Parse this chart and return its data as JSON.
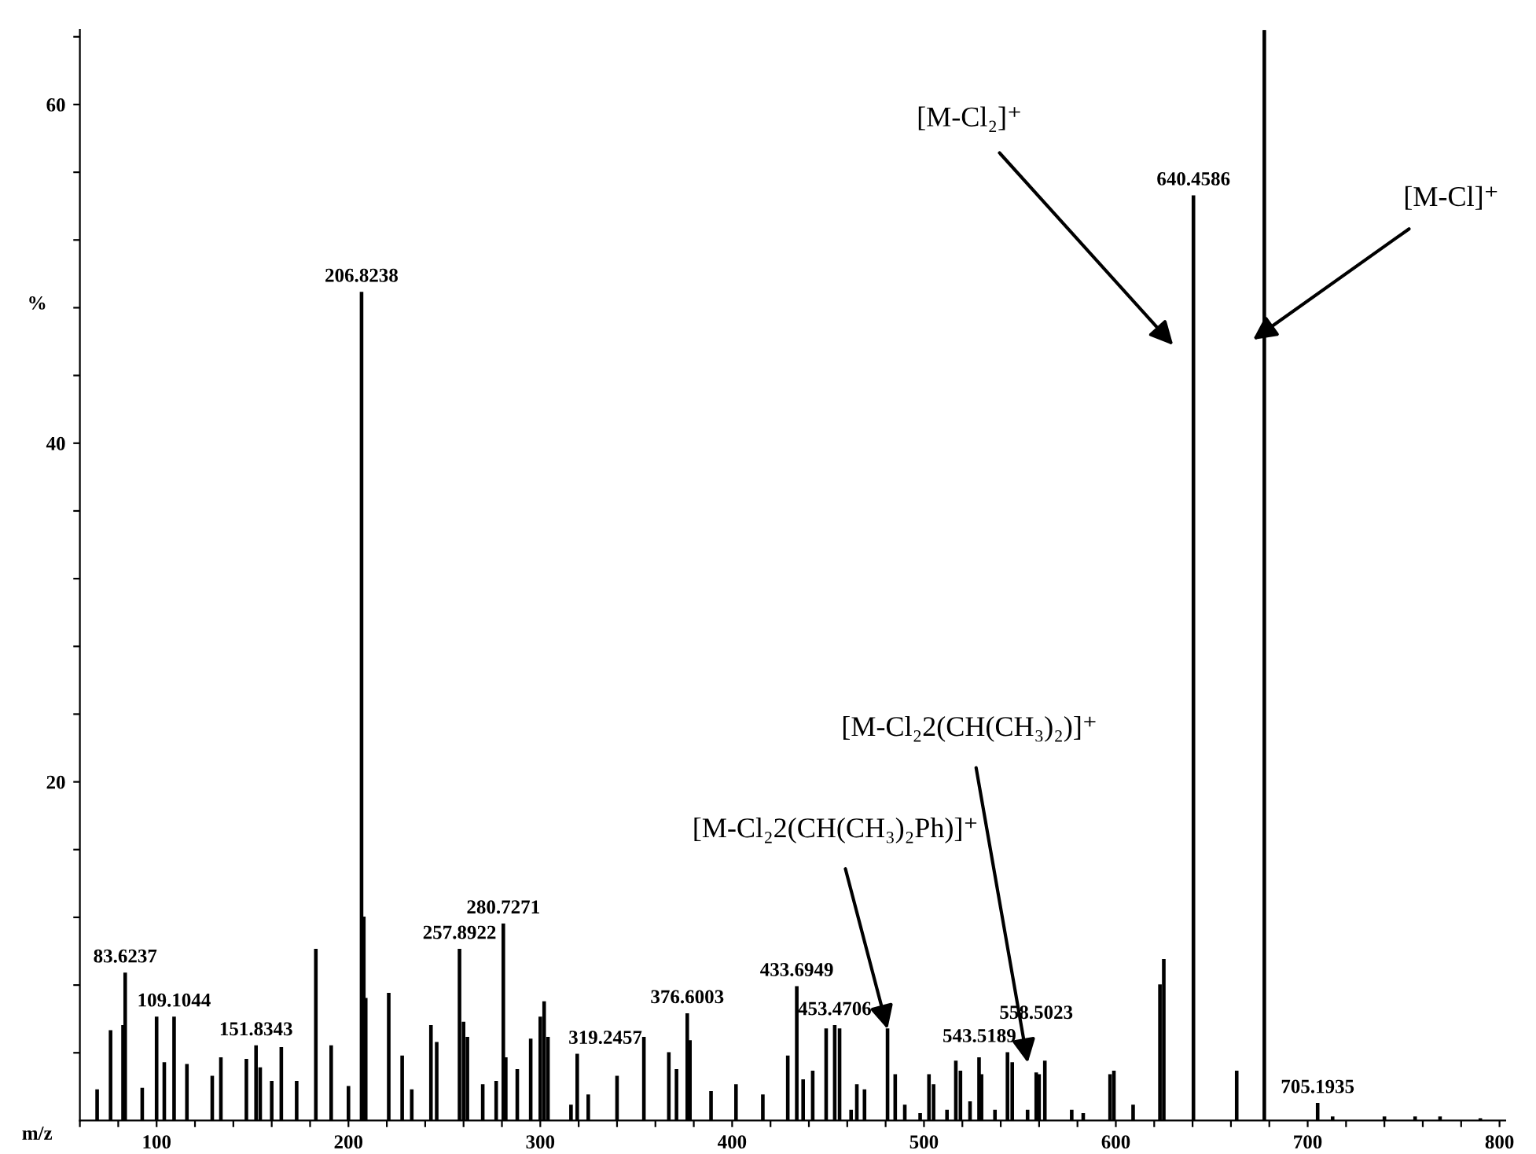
{
  "chart_data": {
    "type": "bar",
    "xlabel": "m/z",
    "ylabel": "%",
    "x": [
      69,
      76,
      82.5,
      83.6237,
      92.5,
      100,
      104,
      109.1044,
      115.8,
      129,
      133.5,
      146.8,
      151.8343,
      154,
      160,
      165,
      173,
      183,
      191,
      200,
      206.8238,
      208,
      209,
      221,
      228,
      233,
      243,
      246,
      257.8922,
      260,
      262,
      270,
      277,
      280.7271,
      282,
      288,
      295,
      300,
      302,
      304,
      316,
      319.2457,
      325,
      340,
      354,
      367,
      371,
      376.6003,
      378,
      389,
      402,
      416,
      429,
      433.6949,
      437,
      442,
      449,
      453.4706,
      456,
      462,
      465,
      469,
      481,
      485,
      490,
      498,
      502.6,
      505,
      512,
      516.6,
      519,
      524,
      528.7,
      530,
      537,
      543.5189,
      546,
      554,
      558.5023,
      560,
      563,
      577,
      583,
      597,
      599,
      609,
      623,
      625,
      640.4586,
      663,
      677.4,
      705.1935,
      713,
      740,
      756,
      769,
      790
    ],
    "values": [
      1.8,
      5.3,
      5.6,
      8.7,
      1.9,
      6.1,
      3.4,
      6.1,
      3.3,
      2.6,
      3.7,
      3.6,
      4.4,
      3.1,
      2.3,
      4.3,
      2.3,
      10.1,
      4.4,
      2.0,
      48.9,
      12.0,
      7.2,
      7.5,
      3.8,
      1.8,
      5.6,
      4.6,
      10.1,
      5.8,
      4.9,
      2.1,
      2.3,
      11.6,
      3.7,
      3.0,
      4.8,
      6.1,
      7.0,
      4.9,
      0.9,
      3.9,
      1.5,
      2.6,
      4.9,
      4.0,
      3.0,
      6.3,
      4.7,
      1.7,
      2.1,
      1.5,
      3.8,
      7.9,
      2.4,
      2.9,
      5.4,
      5.6,
      5.4,
      0.6,
      2.1,
      1.8,
      5.4,
      2.7,
      0.9,
      0.4,
      2.7,
      2.1,
      0.6,
      3.5,
      2.9,
      1.1,
      3.7,
      2.7,
      0.6,
      4.0,
      3.4,
      0.6,
      2.8,
      2.7,
      3.5,
      0.6,
      0.4,
      2.7,
      2.9,
      0.9,
      8.0,
      9.5,
      54.6,
      2.9,
      64.4,
      1.0,
      0.2,
      0.2,
      0.2,
      0.2,
      0.1
    ],
    "color": "#000000",
    "xlim": [
      60,
      803
    ],
    "xticks": [
      {
        "value": 60,
        "label": null
      },
      {
        "value": 80,
        "label": null
      },
      100,
      {
        "value": 120,
        "label": null
      },
      {
        "value": 140,
        "label": null
      },
      {
        "value": 160,
        "label": null
      },
      {
        "value": 180,
        "label": null
      },
      200,
      {
        "value": 220,
        "label": null
      },
      {
        "value": 240,
        "label": null
      },
      {
        "value": 260,
        "label": null
      },
      {
        "value": 280,
        "label": null
      },
      300,
      {
        "value": 320,
        "label": null
      },
      {
        "value": 340,
        "label": null
      },
      {
        "value": 360,
        "label": null
      },
      {
        "value": 380,
        "label": null
      },
      400,
      {
        "value": 420,
        "label": null
      },
      {
        "value": 440,
        "label": null
      },
      {
        "value": 460,
        "label": null
      },
      {
        "value": 480,
        "label": null
      },
      500,
      {
        "value": 520,
        "label": null
      },
      {
        "value": 540,
        "label": null
      },
      {
        "value": 560,
        "label": null
      },
      {
        "value": 580,
        "label": null
      },
      600,
      {
        "value": 620,
        "label": null
      },
      {
        "value": 640,
        "label": null
      },
      {
        "value": 660,
        "label": null
      },
      {
        "value": 680,
        "label": null
      },
      700,
      {
        "value": 720,
        "label": null
      },
      {
        "value": 740,
        "label": null
      },
      {
        "value": 760,
        "label": null
      },
      {
        "value": 780,
        "label": null
      },
      800
    ],
    "ylim": [
      0,
      64.4
    ],
    "yticks": [
      {
        "value": 4,
        "label": null
      },
      {
        "value": 8,
        "label": null
      },
      {
        "value": 12,
        "label": null
      },
      {
        "value": 16,
        "label": null
      },
      20,
      {
        "value": 24,
        "label": null
      },
      {
        "value": 28,
        "label": null
      },
      {
        "value": 32,
        "label": null
      },
      {
        "value": 36,
        "label": null
      },
      40,
      {
        "value": 44,
        "label": null
      },
      {
        "value": 48,
        "label": null
      },
      {
        "value": 52,
        "label": null
      },
      {
        "value": 56,
        "label": null
      },
      60,
      {
        "value": 64,
        "label": null
      }
    ],
    "grid": false,
    "annotations": [
      {
        "text": "83.6237",
        "x": 83.6237,
        "y": 8.7
      },
      {
        "text": "109.1044",
        "x": 109.1044,
        "y": 6.1
      },
      {
        "text": "151.8343",
        "x": 151.8343,
        "y": 4.4
      },
      {
        "text": "206.8238",
        "x": 206.8238,
        "y": 48.9
      },
      {
        "text": "257.8922",
        "x": 257.8922,
        "y": 10.1
      },
      {
        "text": "280.7271",
        "x": 280.7271,
        "y": 11.6
      },
      {
        "text": "319.2457",
        "x": 319.2457,
        "y": 3.9
      },
      {
        "text": "376.6003",
        "x": 376.6003,
        "y": 6.3
      },
      {
        "text": "433.6949",
        "x": 433.6949,
        "y": 7.9
      },
      {
        "text": "453.4706",
        "x": 453.4706,
        "y": 5.6
      },
      {
        "text": "543.5189",
        "x": 543.5189,
        "y": 4.0
      },
      {
        "text": "558.5023",
        "x": 558.5023,
        "y": 2.8
      },
      {
        "text": "640.4586",
        "x": 640.4586,
        "y": 54.6
      },
      {
        "text": "705.1935",
        "x": 705.1935,
        "y": 1.0
      },
      "[M-Cl₂]⁺",
      "[M-Cl]⁺",
      "[M-Cl₂2(CH(CH₃)₂)]⁺",
      {
        "text": "[M-Cl₂2(CH(CH₃)₂Ph)]⁺",
        "x": 481,
        "y": 5.4
      }
    ]
  }
}
